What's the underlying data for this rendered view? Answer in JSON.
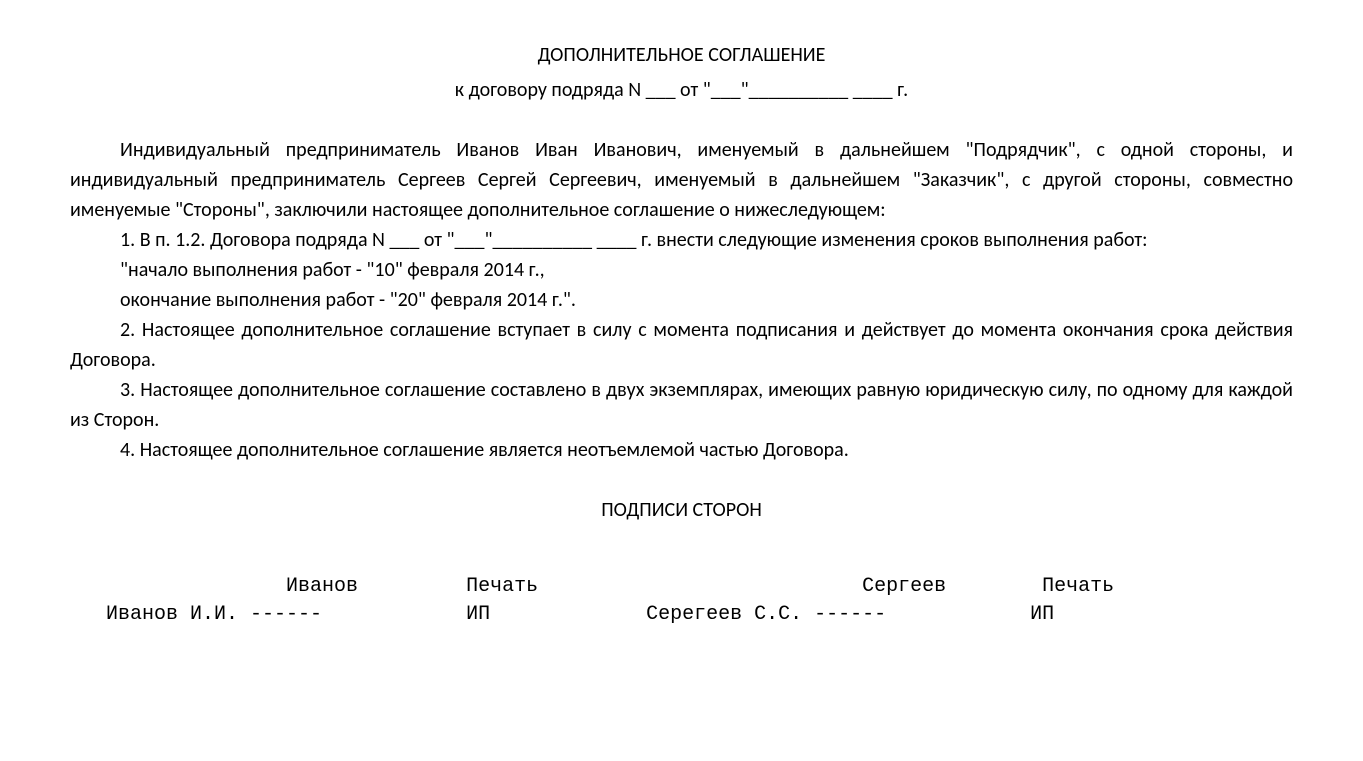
{
  "title": "ДОПОЛНИТЕЛЬНОЕ СОГЛАШЕНИЕ",
  "subtitle": "к договору подряда N ___ от \"___\"__________ ____ г.",
  "preamble": "Индивидуальный предприниматель Иванов Иван Иванович, именуемый в дальнейшем \"Подрядчик\", с одной стороны, и индивидуальный предприниматель Сергеев Сергей Сергеевич, именуемый в дальнейшем \"Заказчик\", с другой стороны, совместно именуемые \"Стороны\", заключили настоящее дополнительное соглашение о нижеследующем:",
  "clause1": "1. В п. 1.2. Договора подряда N ___ от \"___\"__________ ____ г. внести следующие изменения сроков выполнения работ:",
  "clause1_start": "\"начало выполнения работ - \"10\" февраля 2014 г.,",
  "clause1_end": "окончание выполнения работ - \"20\" февраля 2014 г.\".",
  "clause2": "2. Настоящее дополнительное соглашение вступает в силу с момента подписания и действует до момента окончания срока действия Договора.",
  "clause3": "3. Настоящее дополнительное соглашение составлено в двух экземплярах, имеющих равную юридическую силу, по одному для каждой из Сторон.",
  "clause4": "4. Настоящее дополнительное соглашение является неотъемлемой частью Договора.",
  "signatures_title": "ПОДПИСИ СТОРОН",
  "sig_line1": "                  Иванов         Печать                           Сергеев        Печать",
  "sig_line2": "   Иванов И.И. ------            ИП             Серегеев С.С. ------            ИП"
}
